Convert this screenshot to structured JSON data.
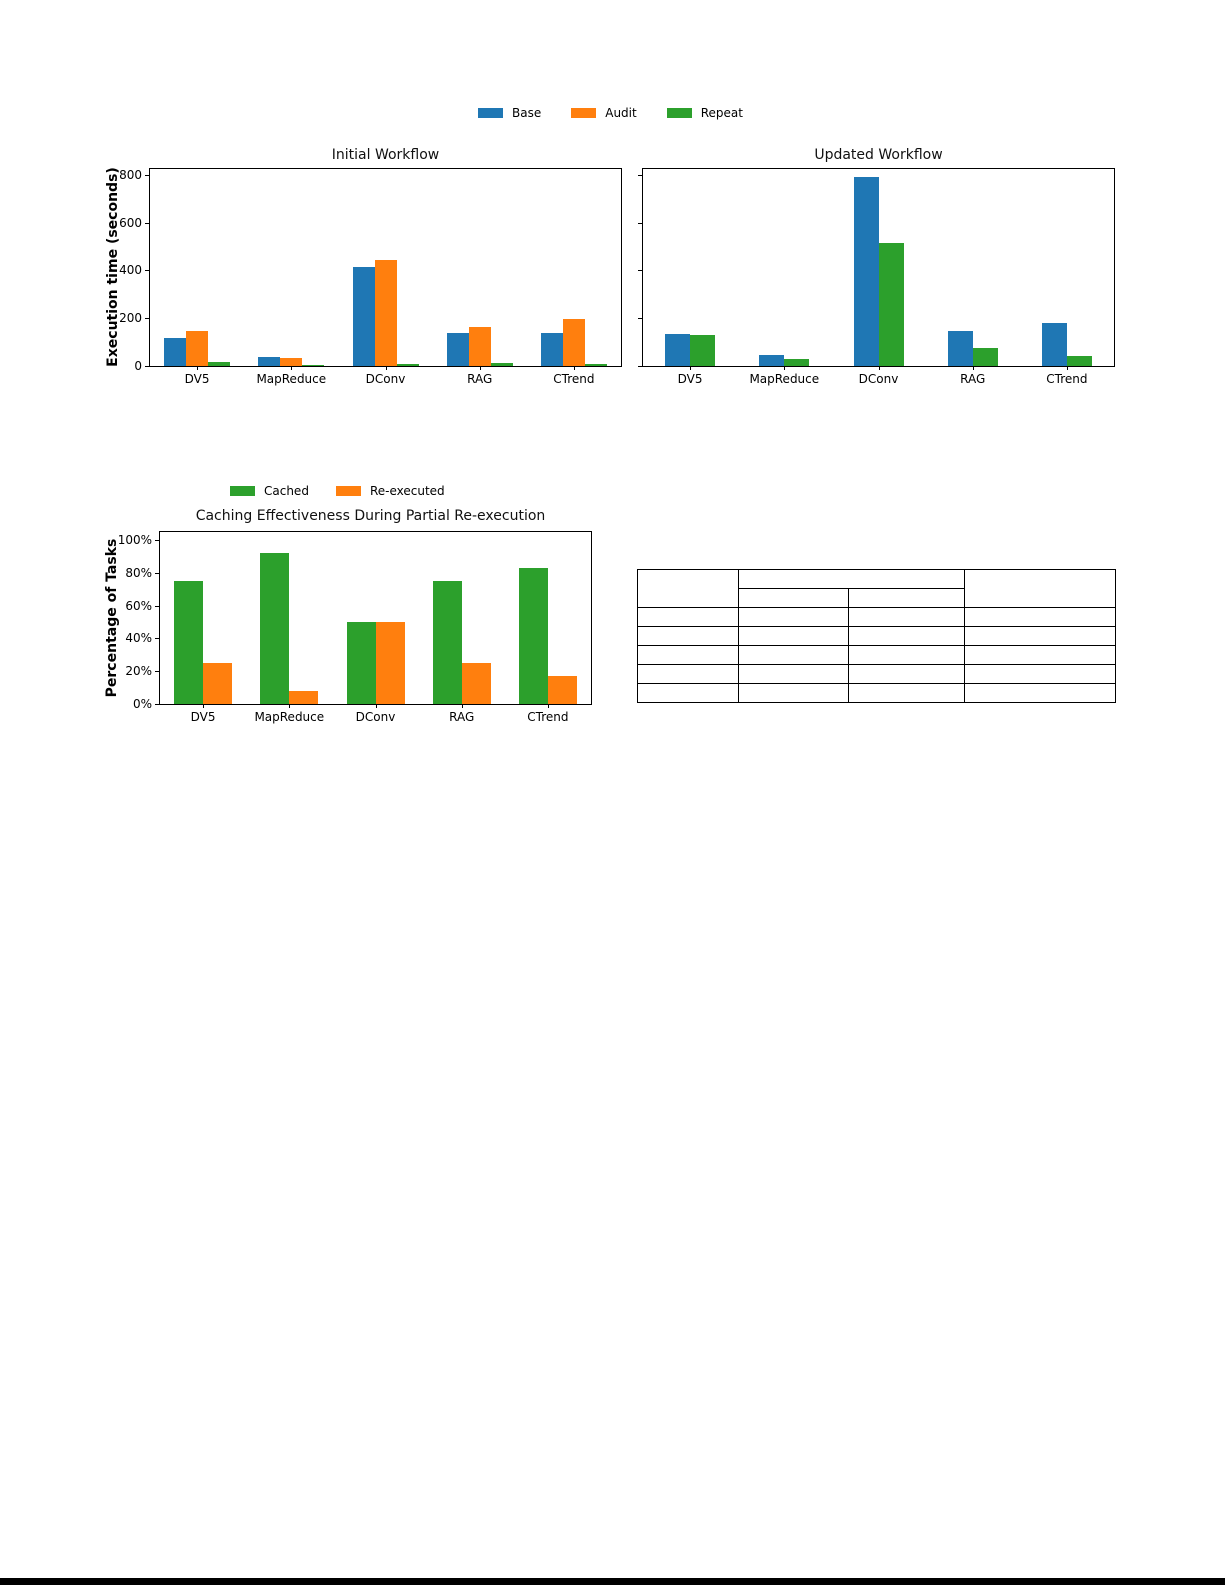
{
  "colors": {
    "base": "#1f77b4",
    "audit": "#ff7f0e",
    "repeat": "#2ca02c",
    "cached": "#2ca02c",
    "reexecuted": "#ff7f0e",
    "bottom_bar": "#000000"
  },
  "legends": {
    "workflow": [
      {
        "label": "Base",
        "color": "#1f77b4"
      },
      {
        "label": "Audit",
        "color": "#ff7f0e"
      },
      {
        "label": "Repeat",
        "color": "#2ca02c"
      }
    ],
    "caching": [
      {
        "label": "Cached",
        "color": "#2ca02c"
      },
      {
        "label": "Re-executed",
        "color": "#ff7f0e"
      }
    ]
  },
  "chart_data": [
    {
      "type": "bar",
      "title": "Initial Workflow",
      "ylabel": "Execution time (seconds)",
      "xlabel": "",
      "categories": [
        "DV5",
        "MapReduce",
        "DConv",
        "RAG",
        "CTrend"
      ],
      "series": [
        {
          "name": "Base",
          "color": "#1f77b4",
          "values": [
            118,
            38,
            415,
            140,
            140
          ]
        },
        {
          "name": "Audit",
          "color": "#ff7f0e",
          "values": [
            148,
            35,
            443,
            162,
            197
          ]
        },
        {
          "name": "Repeat",
          "color": "#2ca02c",
          "values": [
            15,
            4,
            8,
            12,
            10
          ]
        }
      ],
      "ylim": [
        0,
        825
      ],
      "yticks": [
        0,
        200,
        400,
        600,
        800
      ],
      "ytick_labels": [
        "0",
        "200",
        "400",
        "600",
        "800"
      ],
      "grid": false,
      "legend_position": "above-figure"
    },
    {
      "type": "bar",
      "title": "Updated Workflow",
      "ylabel": "",
      "xlabel": "",
      "categories": [
        "DV5",
        "MapReduce",
        "DConv",
        "RAG",
        "CTrend"
      ],
      "series": [
        {
          "name": "Base",
          "color": "#1f77b4",
          "values": [
            135,
            45,
            790,
            145,
            180
          ]
        },
        {
          "name": "Repeat",
          "color": "#2ca02c",
          "values": [
            128,
            28,
            515,
            75,
            40
          ]
        }
      ],
      "ylim": [
        0,
        825
      ],
      "yticks": [
        0,
        200,
        400,
        600,
        800
      ],
      "ytick_labels": null,
      "grid": false,
      "legend_position": "shared-above-figure"
    },
    {
      "type": "bar",
      "title": "Caching Effectiveness During Partial Re-execution",
      "ylabel": "Percentage of Tasks",
      "xlabel": "",
      "categories": [
        "DV5",
        "MapReduce",
        "DConv",
        "RAG",
        "CTrend"
      ],
      "series": [
        {
          "name": "Cached",
          "color": "#2ca02c",
          "values": [
            75,
            92,
            50,
            75,
            83
          ]
        },
        {
          "name": "Re-executed",
          "color": "#ff7f0e",
          "values": [
            25,
            8,
            50,
            25,
            17
          ]
        }
      ],
      "ylim": [
        0,
        105
      ],
      "yticks": [
        0,
        20,
        40,
        60,
        80,
        100
      ],
      "ytick_labels": [
        "0%",
        "20%",
        "40%",
        "60%",
        "80%",
        "100%"
      ],
      "grid": false,
      "legend_position": "above-title"
    }
  ],
  "table": {
    "header": {
      "col1": "",
      "group": "",
      "sub1": "",
      "sub2": "",
      "col4": ""
    },
    "body": [
      [
        "",
        "",
        "",
        ""
      ],
      [
        "",
        "",
        "",
        ""
      ],
      [
        "",
        "",
        "",
        ""
      ],
      [
        "",
        "",
        "",
        ""
      ],
      [
        "",
        "",
        "",
        ""
      ]
    ]
  }
}
